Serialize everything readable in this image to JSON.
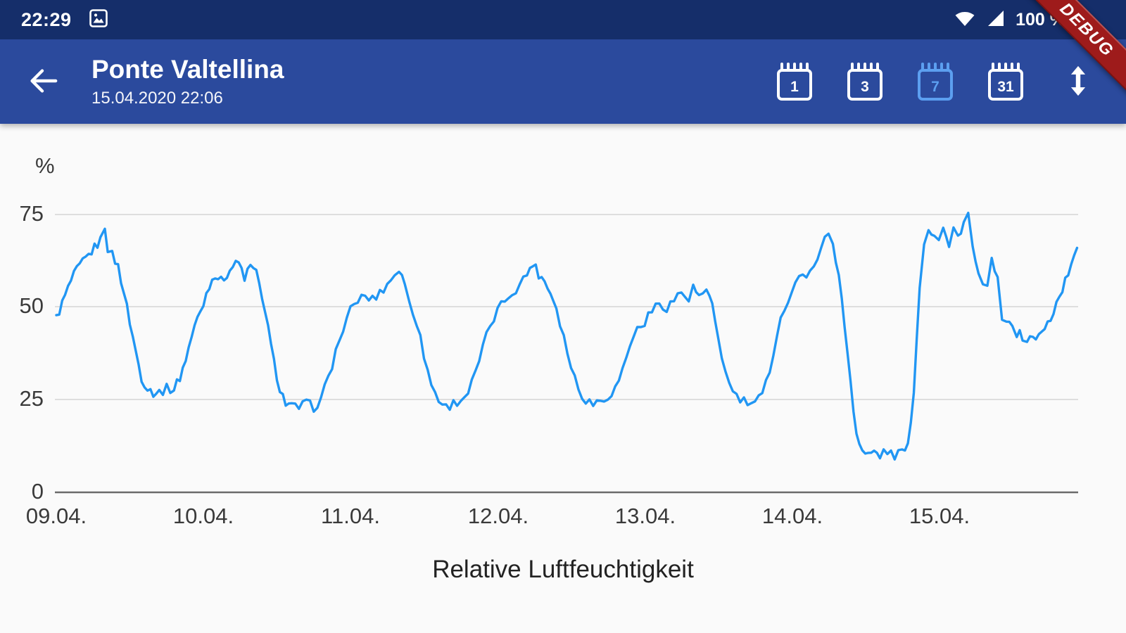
{
  "colors": {
    "status_bar_bg": "#152e6a",
    "app_bar_bg": "#2b4a9d",
    "accent_line": "#2196f3",
    "selected_range": "#5c9ff0",
    "ribbon_bg": "#9e1b1b",
    "content_bg": "#fafafa"
  },
  "status_bar": {
    "time": "22:29",
    "battery": "100 %",
    "icons": [
      "screenshot-icon",
      "wifi-icon",
      "cell-signal-icon",
      "battery-icon"
    ]
  },
  "debug_ribbon": {
    "label": "DEBUG"
  },
  "app_bar": {
    "title": "Ponte Valtellina",
    "subtitle": "15.04.2020 22:06",
    "back_icon": "arrow-back-icon",
    "sort_icon": "vertical-swap-icon",
    "range_buttons": [
      {
        "label": "1",
        "selected": false
      },
      {
        "label": "3",
        "selected": false
      },
      {
        "label": "7",
        "selected": true
      },
      {
        "label": "31",
        "selected": false
      }
    ]
  },
  "chart_data": {
    "type": "line",
    "title": "Relative Luftfeuchtigkeit",
    "ylabel": "%",
    "series_name": "Relative Luftfeuchtigkeit",
    "line_color": "#2196f3",
    "ylim": [
      0,
      75
    ],
    "grid": true,
    "legend": "none",
    "ytick_labels": [
      "75",
      "50",
      "25",
      "0"
    ],
    "xtick_labels": [
      "09.04.",
      "10.04.",
      "11.04.",
      "12.04.",
      "13.04.",
      "14.04.",
      "15.04."
    ],
    "x_unit": "days since 09.04.2020 00:00",
    "points": [
      [
        0,
        47
      ],
      [
        0.06,
        53
      ],
      [
        0.1,
        57
      ],
      [
        0.14,
        60
      ],
      [
        0.18,
        62
      ],
      [
        0.22,
        64
      ],
      [
        0.26,
        66
      ],
      [
        0.3,
        68
      ],
      [
        0.33,
        72
      ],
      [
        0.35,
        66
      ],
      [
        0.38,
        64
      ],
      [
        0.42,
        61
      ],
      [
        0.46,
        54
      ],
      [
        0.5,
        46
      ],
      [
        0.54,
        38
      ],
      [
        0.58,
        31
      ],
      [
        0.62,
        28
      ],
      [
        0.66,
        27
      ],
      [
        0.7,
        27
      ],
      [
        0.75,
        28
      ],
      [
        0.8,
        28
      ],
      [
        0.84,
        31
      ],
      [
        0.88,
        36
      ],
      [
        0.92,
        42
      ],
      [
        0.96,
        47
      ],
      [
        1.0,
        51
      ],
      [
        1.04,
        56
      ],
      [
        1.08,
        59
      ],
      [
        1.12,
        57
      ],
      [
        1.16,
        59
      ],
      [
        1.2,
        61
      ],
      [
        1.24,
        62
      ],
      [
        1.28,
        58
      ],
      [
        1.32,
        61
      ],
      [
        1.36,
        59
      ],
      [
        1.4,
        53
      ],
      [
        1.44,
        44
      ],
      [
        1.48,
        35
      ],
      [
        1.52,
        28
      ],
      [
        1.56,
        24
      ],
      [
        1.6,
        23
      ],
      [
        1.65,
        23
      ],
      [
        1.7,
        24
      ],
      [
        1.75,
        23
      ],
      [
        1.8,
        25
      ],
      [
        1.85,
        31
      ],
      [
        1.9,
        38
      ],
      [
        1.95,
        44
      ],
      [
        2.0,
        49
      ],
      [
        2.05,
        52
      ],
      [
        2.1,
        53
      ],
      [
        2.15,
        52
      ],
      [
        2.2,
        54
      ],
      [
        2.25,
        56
      ],
      [
        2.3,
        59
      ],
      [
        2.33,
        60
      ],
      [
        2.37,
        56
      ],
      [
        2.4,
        52
      ],
      [
        2.45,
        46
      ],
      [
        2.5,
        37
      ],
      [
        2.55,
        29
      ],
      [
        2.6,
        25
      ],
      [
        2.65,
        23
      ],
      [
        2.7,
        24
      ],
      [
        2.75,
        25
      ],
      [
        2.8,
        27
      ],
      [
        2.85,
        32
      ],
      [
        2.9,
        39
      ],
      [
        2.95,
        45
      ],
      [
        3.0,
        49
      ],
      [
        3.05,
        52
      ],
      [
        3.1,
        54
      ],
      [
        3.15,
        56
      ],
      [
        3.2,
        59
      ],
      [
        3.24,
        62
      ],
      [
        3.28,
        59
      ],
      [
        3.32,
        57
      ],
      [
        3.36,
        54
      ],
      [
        3.4,
        50
      ],
      [
        3.45,
        42
      ],
      [
        3.5,
        34
      ],
      [
        3.55,
        28
      ],
      [
        3.6,
        25
      ],
      [
        3.65,
        24
      ],
      [
        3.7,
        25
      ],
      [
        3.75,
        26
      ],
      [
        3.8,
        28
      ],
      [
        3.85,
        33
      ],
      [
        3.9,
        40
      ],
      [
        3.95,
        44
      ],
      [
        4.0,
        46
      ],
      [
        4.05,
        49
      ],
      [
        4.1,
        51
      ],
      [
        4.15,
        50
      ],
      [
        4.2,
        52
      ],
      [
        4.25,
        54
      ],
      [
        4.3,
        52
      ],
      [
        4.33,
        55
      ],
      [
        4.37,
        53
      ],
      [
        4.42,
        54
      ],
      [
        4.46,
        50
      ],
      [
        4.5,
        42
      ],
      [
        4.55,
        32
      ],
      [
        4.6,
        27
      ],
      [
        4.65,
        25
      ],
      [
        4.7,
        24
      ],
      [
        4.75,
        24
      ],
      [
        4.8,
        26
      ],
      [
        4.85,
        33
      ],
      [
        4.9,
        43
      ],
      [
        4.95,
        50
      ],
      [
        5.0,
        54
      ],
      [
        5.05,
        59
      ],
      [
        5.1,
        57
      ],
      [
        5.15,
        62
      ],
      [
        5.2,
        66
      ],
      [
        5.25,
        70
      ],
      [
        5.28,
        68
      ],
      [
        5.32,
        58
      ],
      [
        5.36,
        45
      ],
      [
        5.4,
        30
      ],
      [
        5.44,
        16
      ],
      [
        5.48,
        11
      ],
      [
        5.52,
        10
      ],
      [
        5.56,
        11
      ],
      [
        5.6,
        10
      ],
      [
        5.65,
        11
      ],
      [
        5.7,
        10
      ],
      [
        5.75,
        11
      ],
      [
        5.79,
        12
      ],
      [
        5.83,
        28
      ],
      [
        5.87,
        55
      ],
      [
        5.9,
        68
      ],
      [
        5.93,
        71
      ],
      [
        5.97,
        70
      ],
      [
        6.0,
        69
      ],
      [
        6.03,
        72
      ],
      [
        6.07,
        66
      ],
      [
        6.1,
        71
      ],
      [
        6.13,
        69
      ],
      [
        6.17,
        73
      ],
      [
        6.2,
        75
      ],
      [
        6.23,
        66
      ],
      [
        6.27,
        58
      ],
      [
        6.3,
        55
      ],
      [
        6.33,
        57
      ],
      [
        6.36,
        62
      ],
      [
        6.4,
        57
      ],
      [
        6.43,
        47
      ],
      [
        6.46,
        45
      ],
      [
        6.5,
        46
      ],
      [
        6.53,
        43
      ],
      [
        6.57,
        42
      ],
      [
        6.6,
        41
      ],
      [
        6.64,
        42
      ],
      [
        6.68,
        42
      ],
      [
        6.72,
        44
      ],
      [
        6.76,
        47
      ],
      [
        6.8,
        51
      ],
      [
        6.84,
        55
      ],
      [
        6.88,
        59
      ],
      [
        6.92,
        63
      ],
      [
        6.94,
        66
      ]
    ]
  }
}
